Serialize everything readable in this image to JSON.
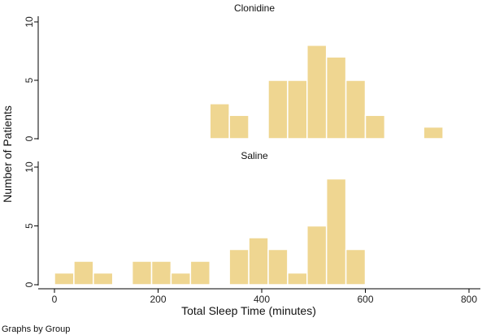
{
  "chart_data": {
    "type": "bar",
    "ylabel": "Number of Patients",
    "xlabel": "Total Sleep Time (minutes)",
    "note": "Graphs by Group",
    "xlim": [
      0,
      800
    ],
    "ylim": [
      0,
      10
    ],
    "xticks": [
      0,
      200,
      400,
      600,
      800
    ],
    "yticks": [
      0,
      5,
      10
    ],
    "bin_width": 37.5,
    "bar_color": "#efd691",
    "bar_edge": "#ffffff",
    "panels": [
      {
        "title": "Clonidine",
        "bins": [
          {
            "x": 300,
            "count": 3
          },
          {
            "x": 337.5,
            "count": 2
          },
          {
            "x": 412.5,
            "count": 5
          },
          {
            "x": 450,
            "count": 5
          },
          {
            "x": 487.5,
            "count": 8
          },
          {
            "x": 525,
            "count": 7
          },
          {
            "x": 562.5,
            "count": 5
          },
          {
            "x": 600,
            "count": 2
          },
          {
            "x": 712.5,
            "count": 1
          }
        ]
      },
      {
        "title": "Saline",
        "bins": [
          {
            "x": 0,
            "count": 1
          },
          {
            "x": 37.5,
            "count": 2
          },
          {
            "x": 75,
            "count": 1
          },
          {
            "x": 150,
            "count": 2
          },
          {
            "x": 187.5,
            "count": 2
          },
          {
            "x": 225,
            "count": 1
          },
          {
            "x": 262.5,
            "count": 2
          },
          {
            "x": 337.5,
            "count": 3
          },
          {
            "x": 375,
            "count": 4
          },
          {
            "x": 412.5,
            "count": 3
          },
          {
            "x": 450,
            "count": 1
          },
          {
            "x": 487.5,
            "count": 5
          },
          {
            "x": 525,
            "count": 9
          },
          {
            "x": 562.5,
            "count": 3
          }
        ]
      }
    ]
  }
}
